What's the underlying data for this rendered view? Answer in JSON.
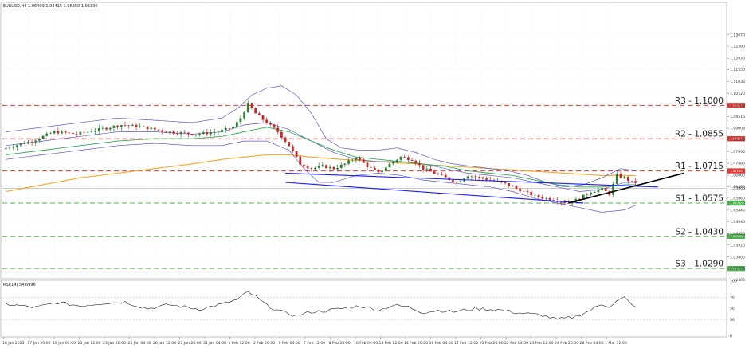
{
  "chart_data": {
    "type": "candlestick",
    "symbol_header": "EURUSD,H4  1.06409 1.06415 1.06350 1.06390",
    "rsi_header": "RSI(14) 54.6996",
    "price_axis": {
      "min": 1.0249,
      "max": 1.1445,
      "ticks": [
        "1.13070",
        "1.12580",
        "1.12050",
        "1.11550",
        "1.11030",
        "1.10520",
        "1.10000",
        "1.09515",
        "1.09005",
        "1.08505",
        "1.07990",
        "1.07480",
        "1.06960",
        "1.06460",
        "1.05960",
        "1.05440",
        "1.04940",
        "1.04420",
        "1.03920",
        "1.03400",
        "1.02905",
        "1.02405"
      ],
      "current_price": 1.0639
    },
    "rsi_axis": {
      "min": 0,
      "max": 100,
      "ticks": [
        "100",
        "70",
        "50",
        "30",
        "0"
      ],
      "levels": [
        70,
        30
      ]
    },
    "x_axis": {
      "ticks": [
        "16 Jan 2023",
        "17 Jan 20:00",
        "19 Jan 04:00",
        "20 Jan 12:00",
        "23 Jan 20:00",
        "25 Jan 04:00",
        "26 Jan 12:00",
        "27 Jan 20:00",
        "31 Jan 04:00",
        "1 Feb 12:00",
        "2 Feb 20:00",
        "6 Feb 04:00",
        "7 Feb 12:00",
        "8 Feb 20:00",
        "10 Feb 04:00",
        "13 Feb 12:00",
        "14 Feb 20:00",
        "16 Feb 04:00",
        "17 Feb 12:00",
        "20 Feb 20:00",
        "22 Feb 04:00",
        "23 Feb 12:00",
        "24 Feb 20:00",
        "28 Feb 04:00",
        "1 Mar 12:00"
      ]
    },
    "levels": [
      {
        "label": "R3 - 1.1000",
        "value": 1.1,
        "tag": "1.10000",
        "color": "#e53935",
        "style": "dashed"
      },
      {
        "label": "R2 - 1.0855",
        "value": 1.0855,
        "tag": "1.08550",
        "color": "#e53935",
        "style": "dashed"
      },
      {
        "label": "R1 - 1.0715",
        "value": 1.0715,
        "tag": "1.07150",
        "color": "#e53935",
        "style": "dashed"
      },
      {
        "label": "S1 - 1.0575",
        "value": 1.0575,
        "tag": "1.05750",
        "color": "#4caf50",
        "style": "dashed"
      },
      {
        "label": "S2 - 1.0430",
        "value": 1.043,
        "tag": "1.04300",
        "color": "#4caf50",
        "style": "dashed"
      },
      {
        "label": "S3 - 1.0290",
        "value": 1.029,
        "tag": "1.02900",
        "color": "#4caf50",
        "style": "dashed"
      }
    ],
    "price_path_knots": [
      [
        0,
        1.081
      ],
      [
        8,
        1.0845
      ],
      [
        14,
        1.0885
      ],
      [
        20,
        1.0875
      ],
      [
        26,
        1.0895
      ],
      [
        32,
        1.0915
      ],
      [
        38,
        1.0905
      ],
      [
        44,
        1.0885
      ],
      [
        52,
        1.0875
      ],
      [
        58,
        1.0885
      ],
      [
        62,
        1.0905
      ],
      [
        64,
        1.0945
      ],
      [
        66,
        1.1005
      ],
      [
        68,
        1.0965
      ],
      [
        71,
        1.0925
      ],
      [
        74,
        1.0885
      ],
      [
        77,
        1.0825
      ],
      [
        80,
        1.0745
      ],
      [
        83,
        1.0725
      ],
      [
        86,
        1.0735
      ],
      [
        89,
        1.0725
      ],
      [
        92,
        1.0745
      ],
      [
        95,
        1.0775
      ],
      [
        98,
        1.0735
      ],
      [
        101,
        1.0705
      ],
      [
        104,
        1.0745
      ],
      [
        107,
        1.0775
      ],
      [
        110,
        1.0765
      ],
      [
        113,
        1.0725
      ],
      [
        116,
        1.0705
      ],
      [
        119,
        1.0685
      ],
      [
        122,
        1.0665
      ],
      [
        125,
        1.0695
      ],
      [
        128,
        1.0685
      ],
      [
        131,
        1.0675
      ],
      [
        134,
        1.0665
      ],
      [
        137,
        1.0645
      ],
      [
        140,
        1.0625
      ],
      [
        143,
        1.0605
      ],
      [
        146,
        1.0595
      ],
      [
        149,
        1.0585
      ],
      [
        152,
        1.0575
      ],
      [
        155,
        1.0595
      ],
      [
        158,
        1.0625
      ],
      [
        161,
        1.0635
      ],
      [
        163,
        1.0615
      ],
      [
        164,
        1.0655
      ],
      [
        165,
        1.0695
      ],
      [
        167,
        1.0685
      ],
      [
        169,
        1.0665
      ]
    ],
    "bands_upper_knots": [
      [
        0,
        1.0885
      ],
      [
        10,
        1.0905
      ],
      [
        20,
        1.0925
      ],
      [
        30,
        1.0945
      ],
      [
        40,
        1.0935
      ],
      [
        50,
        1.0925
      ],
      [
        58,
        1.0945
      ],
      [
        62,
        1.0985
      ],
      [
        66,
        1.1045
      ],
      [
        70,
        1.1075
      ],
      [
        74,
        1.1085
      ],
      [
        78,
        1.1045
      ],
      [
        82,
        1.0965
      ],
      [
        86,
        1.0855
      ],
      [
        90,
        1.0815
      ],
      [
        95,
        1.0805
      ],
      [
        100,
        1.0805
      ],
      [
        105,
        1.0815
      ],
      [
        110,
        1.0795
      ],
      [
        115,
        1.0765
      ],
      [
        120,
        1.0745
      ],
      [
        125,
        1.0735
      ],
      [
        130,
        1.0725
      ],
      [
        135,
        1.0715
      ],
      [
        140,
        1.0695
      ],
      [
        145,
        1.0665
      ],
      [
        150,
        1.0645
      ],
      [
        155,
        1.0655
      ],
      [
        160,
        1.0685
      ],
      [
        165,
        1.0725
      ],
      [
        169,
        1.0715
      ]
    ],
    "bands_middle_knots": [
      [
        0,
        1.0825
      ],
      [
        10,
        1.0845
      ],
      [
        20,
        1.0865
      ],
      [
        30,
        1.0885
      ],
      [
        40,
        1.0885
      ],
      [
        50,
        1.0875
      ],
      [
        58,
        1.0885
      ],
      [
        64,
        1.0915
      ],
      [
        70,
        1.0925
      ],
      [
        76,
        1.0895
      ],
      [
        82,
        1.0845
      ],
      [
        88,
        1.0795
      ],
      [
        94,
        1.0765
      ],
      [
        100,
        1.0755
      ],
      [
        106,
        1.0755
      ],
      [
        112,
        1.0745
      ],
      [
        118,
        1.0725
      ],
      [
        124,
        1.0705
      ],
      [
        130,
        1.0695
      ],
      [
        136,
        1.0685
      ],
      [
        142,
        1.0665
      ],
      [
        148,
        1.0645
      ],
      [
        154,
        1.0625
      ],
      [
        160,
        1.0635
      ],
      [
        166,
        1.0665
      ],
      [
        169,
        1.0665
      ]
    ],
    "bands_lower_knots": [
      [
        0,
        1.0765
      ],
      [
        10,
        1.0785
      ],
      [
        20,
        1.0805
      ],
      [
        30,
        1.0825
      ],
      [
        40,
        1.0835
      ],
      [
        50,
        1.0825
      ],
      [
        58,
        1.0825
      ],
      [
        64,
        1.0845
      ],
      [
        70,
        1.0845
      ],
      [
        76,
        1.0805
      ],
      [
        80,
        1.0725
      ],
      [
        84,
        1.0665
      ],
      [
        88,
        1.0665
      ],
      [
        94,
        1.0695
      ],
      [
        100,
        1.0705
      ],
      [
        106,
        1.0695
      ],
      [
        112,
        1.0675
      ],
      [
        118,
        1.0665
      ],
      [
        124,
        1.0655
      ],
      [
        130,
        1.0645
      ],
      [
        136,
        1.0625
      ],
      [
        142,
        1.0595
      ],
      [
        148,
        1.0575
      ],
      [
        154,
        1.0555
      ],
      [
        160,
        1.0535
      ],
      [
        166,
        1.0545
      ],
      [
        169,
        1.0565
      ]
    ],
    "ema_fast_knots": [
      [
        0,
        1.0785
      ],
      [
        10,
        1.0805
      ],
      [
        20,
        1.0825
      ],
      [
        30,
        1.0845
      ],
      [
        40,
        1.0855
      ],
      [
        50,
        1.0855
      ],
      [
        58,
        1.0865
      ],
      [
        64,
        1.0885
      ],
      [
        70,
        1.0905
      ],
      [
        76,
        1.0885
      ],
      [
        82,
        1.0845
      ],
      [
        88,
        1.0805
      ],
      [
        94,
        1.0775
      ],
      [
        100,
        1.0765
      ],
      [
        106,
        1.0755
      ],
      [
        112,
        1.0745
      ],
      [
        118,
        1.0735
      ],
      [
        124,
        1.0715
      ],
      [
        130,
        1.0705
      ],
      [
        136,
        1.0695
      ],
      [
        142,
        1.0675
      ],
      [
        148,
        1.0655
      ],
      [
        154,
        1.0645
      ],
      [
        160,
        1.0645
      ],
      [
        166,
        1.0655
      ],
      [
        169,
        1.0655
      ]
    ],
    "ema_slow_knots": [
      [
        0,
        1.0625
      ],
      [
        10,
        1.0655
      ],
      [
        20,
        1.0685
      ],
      [
        30,
        1.0705
      ],
      [
        40,
        1.0725
      ],
      [
        50,
        1.0745
      ],
      [
        58,
        1.0765
      ],
      [
        64,
        1.0775
      ],
      [
        70,
        1.0785
      ],
      [
        76,
        1.0785
      ],
      [
        82,
        1.0775
      ],
      [
        90,
        1.0765
      ],
      [
        100,
        1.0755
      ],
      [
        110,
        1.0745
      ],
      [
        120,
        1.0735
      ],
      [
        130,
        1.0725
      ],
      [
        140,
        1.0715
      ],
      [
        150,
        1.0705
      ],
      [
        160,
        1.0695
      ],
      [
        169,
        1.0695
      ]
    ],
    "trendlines": [
      {
        "name": "channel-upper",
        "points": [
          [
            75,
            1.0705
          ],
          [
            175,
            1.0645
          ]
        ],
        "color": "#1a1aff"
      },
      {
        "name": "channel-lower",
        "points": [
          [
            75,
            1.0665
          ],
          [
            155,
            1.0575
          ]
        ],
        "color": "#1a1aff"
      },
      {
        "name": "uptrend-line",
        "points": [
          [
            151,
            1.0575
          ],
          [
            182,
            1.0705
          ]
        ],
        "color": "#000000"
      }
    ],
    "rsi_knots": [
      [
        0,
        58
      ],
      [
        8,
        52
      ],
      [
        14,
        61
      ],
      [
        20,
        55
      ],
      [
        26,
        60
      ],
      [
        32,
        62
      ],
      [
        38,
        50
      ],
      [
        44,
        57
      ],
      [
        52,
        49
      ],
      [
        58,
        58
      ],
      [
        62,
        66
      ],
      [
        65,
        80
      ],
      [
        67,
        72
      ],
      [
        70,
        56
      ],
      [
        74,
        44
      ],
      [
        78,
        37
      ],
      [
        82,
        44
      ],
      [
        86,
        46
      ],
      [
        90,
        50
      ],
      [
        95,
        55
      ],
      [
        100,
        47
      ],
      [
        104,
        56
      ],
      [
        108,
        53
      ],
      [
        112,
        43
      ],
      [
        116,
        47
      ],
      [
        120,
        44
      ],
      [
        126,
        50
      ],
      [
        132,
        48
      ],
      [
        138,
        42
      ],
      [
        144,
        38
      ],
      [
        148,
        30
      ],
      [
        152,
        34
      ],
      [
        156,
        44
      ],
      [
        160,
        58
      ],
      [
        162,
        54
      ],
      [
        164,
        64
      ],
      [
        166,
        70
      ],
      [
        168,
        56
      ],
      [
        169,
        55
      ]
    ],
    "colors": {
      "bull_candle": "#2e7d32",
      "bear_candle": "#c62828",
      "bands": "#5c5cc8",
      "ema_fast": "#2eaa5a",
      "ema_slow": "#f5a623",
      "grid": "#d8d8d8",
      "rsi_line": "#222222"
    }
  }
}
